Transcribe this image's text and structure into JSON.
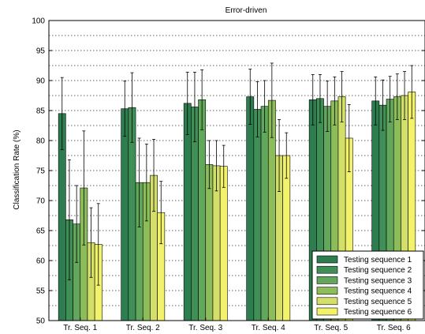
{
  "chart_data": {
    "type": "bar",
    "title": "Error-driven",
    "xlabel": "",
    "ylabel": "Classification Rate (%)",
    "ylim": [
      50,
      100
    ],
    "yticks": [
      50,
      55,
      60,
      65,
      70,
      75,
      80,
      85,
      90,
      95,
      100
    ],
    "grid": "horizontal dotted",
    "legend_position": "bottom-right",
    "categories": [
      "Tr. Seq. 1",
      "Tr. Seq. 2",
      "Tr. Seq. 3",
      "Tr. Seq. 4",
      "Tr. Seq. 5",
      "Tr. Seq. 6"
    ],
    "series": [
      {
        "name": "Testing sequence 1",
        "color": "#2e7d4f",
        "values": [
          84.5,
          85.3,
          86.2,
          87.3,
          86.8,
          86.6
        ],
        "errors": [
          6.0,
          4.6,
          5.2,
          4.6,
          4.2,
          4.0
        ]
      },
      {
        "name": "Testing sequence 2",
        "color": "#3f8f57",
        "values": [
          66.8,
          85.5,
          85.6,
          85.2,
          87.0,
          85.9
        ],
        "errors": [
          10.0,
          5.8,
          5.8,
          4.6,
          4.0,
          4.2
        ]
      },
      {
        "name": "Testing sequence 3",
        "color": "#62a85c",
        "values": [
          66.1,
          73.0,
          86.8,
          85.7,
          85.7,
          86.9
        ],
        "errors": [
          6.4,
          7.4,
          5.0,
          4.3,
          4.2,
          3.8
        ]
      },
      {
        "name": "Testing sequence 4",
        "color": "#8dbd5a",
        "values": [
          72.1,
          73.0,
          76.0,
          86.7,
          86.6,
          87.3
        ],
        "errors": [
          9.5,
          6.4,
          4.0,
          6.2,
          4.0,
          3.8
        ]
      },
      {
        "name": "Testing sequence 5",
        "color": "#d3df69",
        "values": [
          63.0,
          74.2,
          75.8,
          77.5,
          87.3,
          87.5
        ],
        "errors": [
          5.8,
          6.0,
          4.2,
          6.0,
          4.2,
          4.0
        ]
      },
      {
        "name": "Testing sequence 6",
        "color": "#f2f36a",
        "values": [
          62.7,
          68.0,
          75.7,
          77.5,
          80.4,
          88.1
        ],
        "errors": [
          6.8,
          5.2,
          3.5,
          3.8,
          5.6,
          4.4
        ]
      }
    ]
  }
}
